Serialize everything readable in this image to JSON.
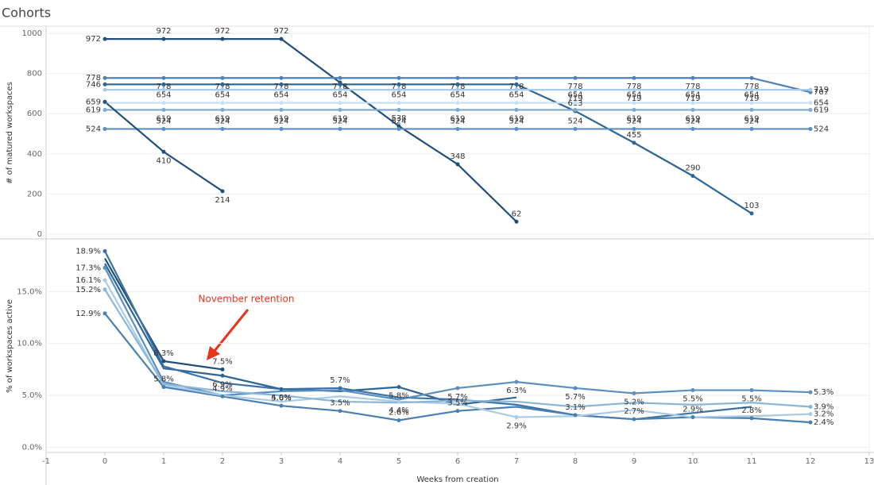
{
  "title": "Cohorts",
  "chart_data": [
    {
      "type": "line",
      "ylabel": "# of matured workspaces",
      "markers": "all",
      "x": [
        0,
        1,
        2,
        3,
        4,
        5,
        6,
        7,
        8,
        9,
        10,
        11,
        12
      ],
      "xlim": [
        -1,
        13
      ],
      "ylim": [
        -20,
        1028
      ],
      "yticks": [
        0,
        200,
        400,
        600,
        800,
        1000
      ],
      "grid": true,
      "series": [
        {
          "color": "#1f4e79",
          "values": [
            972,
            972,
            972,
            972,
            755,
            538,
            348,
            62,
            null,
            null,
            null,
            null,
            null
          ],
          "value_labels": [
            "972",
            "972",
            "972",
            "972",
            null,
            "538",
            "348",
            "62",
            null,
            null,
            null,
            null,
            null
          ]
        },
        {
          "color": "#4f81b5",
          "values": [
            778,
            778,
            778,
            778,
            778,
            778,
            778,
            778,
            778,
            778,
            778,
            778,
            707
          ],
          "value_labels": [
            "778",
            "778",
            "778",
            "778",
            "778",
            "778",
            "778",
            "778",
            "778",
            "778",
            "778",
            "778",
            "707"
          ]
        },
        {
          "color": "#2e6595",
          "values": [
            746,
            746,
            746,
            746,
            746,
            746,
            746,
            746,
            613,
            455,
            290,
            103,
            null
          ],
          "value_labels": [
            "746",
            null,
            null,
            null,
            null,
            null,
            null,
            null,
            "613",
            "455",
            "290",
            "103",
            null
          ]
        },
        {
          "color": "#a8cce8",
          "values": [
            719,
            719,
            719,
            719,
            719,
            719,
            719,
            719,
            719,
            719,
            719,
            719,
            719
          ],
          "value_labels": [
            null,
            null,
            null,
            null,
            null,
            null,
            null,
            null,
            "719",
            "719",
            "719",
            "719",
            "719"
          ]
        },
        {
          "color": "#c6dff2",
          "values": [
            654,
            654,
            654,
            654,
            654,
            654,
            654,
            654,
            654,
            654,
            654,
            654,
            654
          ],
          "value_labels": [
            null,
            "654",
            "654",
            "654",
            "654",
            "654",
            "654",
            "654",
            "654",
            "654",
            "654",
            "654",
            "654"
          ]
        },
        {
          "color": "#7aaad4",
          "values": [
            619,
            619,
            619,
            619,
            619,
            619,
            619,
            619,
            619,
            619,
            619,
            619,
            619
          ],
          "value_labels": [
            "619",
            "619",
            "619",
            "619",
            "619",
            null,
            "619",
            "619",
            null,
            "619",
            "619",
            "619",
            "619"
          ]
        },
        {
          "color": "#5a8fc2",
          "values": [
            524,
            524,
            524,
            524,
            524,
            524,
            524,
            524,
            524,
            524,
            524,
            524,
            524
          ],
          "value_labels": [
            "524",
            "524",
            "524",
            "524",
            "524",
            "524",
            "524",
            "524",
            "524",
            "524",
            "524",
            "524",
            "524"
          ]
        },
        {
          "color": "#234f7c",
          "values": [
            659,
            410,
            214,
            null,
            null,
            null,
            null,
            null,
            null,
            null,
            null,
            null,
            null
          ],
          "value_labels": [
            "659",
            "410",
            "214",
            null,
            null,
            null,
            null,
            null,
            null,
            null,
            null,
            null,
            null
          ]
        }
      ]
    },
    {
      "type": "line",
      "ylabel": "% of workspaces active",
      "xlabel": "Weeks from creation",
      "markers": "labeled",
      "annotation": "November retention",
      "x": [
        0,
        1,
        2,
        3,
        4,
        5,
        6,
        7,
        8,
        9,
        10,
        11,
        12
      ],
      "xlim": [
        -1,
        13
      ],
      "xticks": [
        -1,
        0,
        1,
        2,
        3,
        4,
        5,
        6,
        7,
        8,
        9,
        10,
        11,
        12,
        13
      ],
      "ylim": [
        -0.5,
        20
      ],
      "yticks": [
        {
          "value": 0,
          "label": "0.0%"
        },
        {
          "value": 5,
          "label": "5.0%"
        },
        {
          "value": 10,
          "label": "10.0%"
        },
        {
          "value": 15,
          "label": "15.0%"
        }
      ],
      "grid": true,
      "series": [
        {
          "color": "#1f4e79",
          "values": [
            18.2,
            8.3,
            7.5,
            null,
            null,
            null,
            null,
            null,
            null,
            null,
            null,
            null,
            null
          ],
          "value_labels": [
            null,
            "8.3%",
            "7.5%",
            null,
            null,
            null,
            null,
            null,
            null,
            null,
            null,
            null,
            null
          ]
        },
        {
          "color": "#2e6595",
          "values": [
            17.7,
            7.6,
            6.9,
            5.6,
            5.4,
            5.8,
            4.1,
            4.8,
            null,
            null,
            null,
            null,
            null
          ],
          "value_labels": [
            null,
            null,
            "6.9%",
            "5.6%",
            null,
            "5.8%",
            null,
            null,
            null,
            null,
            null,
            null,
            null
          ]
        },
        {
          "color": "#3b72a6",
          "values": [
            18.9,
            7.8,
            6.2,
            5.6,
            5.7,
            4.8,
            4.6,
            4.1,
            3.1,
            2.7,
            3.3,
            3.9,
            null
          ],
          "value_labels": [
            "18.9%",
            null,
            null,
            null,
            "5.7%",
            null,
            null,
            null,
            null,
            null,
            null,
            null,
            null
          ]
        },
        {
          "color": "#5b8fbf",
          "values": [
            17.3,
            6.3,
            5.0,
            5.4,
            5.5,
            4.6,
            5.7,
            6.3,
            5.7,
            5.2,
            5.5,
            5.5,
            5.3
          ],
          "value_labels": [
            "17.3%",
            null,
            null,
            null,
            null,
            null,
            "5.7%",
            "6.3%",
            "5.7%",
            "5.2%",
            "5.5%",
            "5.5%",
            "5.3%"
          ]
        },
        {
          "color": "#4a7fb0",
          "values": [
            12.9,
            5.8,
            4.9,
            4.0,
            3.5,
            2.6,
            3.5,
            3.9,
            3.1,
            2.7,
            2.9,
            2.8,
            2.4
          ],
          "value_labels": [
            "12.9%",
            "5.8%",
            "4.9%",
            "4.0%",
            "3.5%",
            "2.6%",
            "3.5%",
            null,
            "3.1%",
            "2.7%",
            "2.9%",
            "2.8%",
            "2.4%"
          ]
        },
        {
          "color": "#a9cbe6",
          "values": [
            16.1,
            6.0,
            5.0,
            4.4,
            4.9,
            4.4,
            4.2,
            2.9,
            3.0,
            3.6,
            2.9,
            3.0,
            3.2
          ],
          "value_labels": [
            "16.1%",
            null,
            null,
            null,
            null,
            "4.4%",
            null,
            "2.9%",
            null,
            null,
            null,
            null,
            "3.2%"
          ]
        },
        {
          "color": "#8ab6da",
          "values": [
            15.2,
            6.1,
            5.4,
            5.0,
            4.4,
            4.3,
            4.5,
            4.4,
            3.9,
            4.3,
            4.1,
            4.3,
            3.9
          ],
          "value_labels": [
            "15.2%",
            null,
            null,
            null,
            null,
            null,
            null,
            null,
            null,
            null,
            null,
            null,
            "3.9%"
          ]
        }
      ]
    }
  ]
}
